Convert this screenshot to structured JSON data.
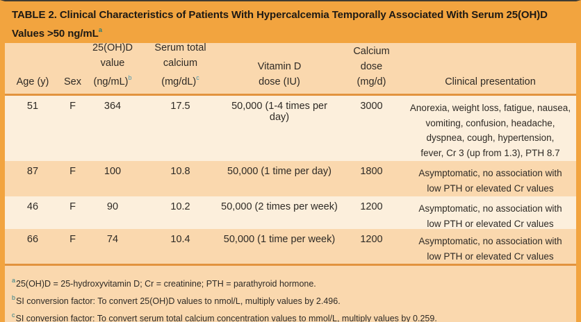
{
  "colors": {
    "title_band_orange": "#F2A43F",
    "band_medium_peach": "#FAD8AE",
    "band_light_cream": "#FCEFDC",
    "rule_orange": "#E2933E",
    "superscript_teal": "#2E7D86",
    "text_dark": "#2E2A25"
  },
  "table": {
    "title": {
      "line1": "TABLE 2. Clinical Characteristics of Patients With Hypercalcemia Temporally Associated With Serum 25(OH)D",
      "line2": "Values >50 ng/mL",
      "marker": "a"
    },
    "headers": {
      "age": {
        "l1": "Age (y)"
      },
      "sex": {
        "l1": "Sex"
      },
      "dvalue": {
        "l1": "25(OH)D",
        "l2": "value",
        "l3": "(ng/mL)",
        "marker": "b"
      },
      "serum": {
        "l1": "Serum total",
        "l2": "calcium",
        "l3": "(mg/dL)",
        "marker": "c"
      },
      "vitd": {
        "l1": "Vitamin D",
        "l2": "dose (IU)"
      },
      "cadose": {
        "l1": "Calcium",
        "l2": "dose",
        "l3": "(mg/d)"
      },
      "presentation": {
        "l1": "Clinical presentation"
      }
    },
    "rows": [
      {
        "age": "51",
        "sex": "F",
        "dvalue": "364",
        "serum": "17.5",
        "vitd": "50,000 (1-4 times per day)",
        "cadose": "3000",
        "pres1": "Anorexia, weight loss, fatigue, nausea,",
        "pres2": "vomiting, confusion, headache,",
        "pres3": "dyspnea, cough, hypertension,",
        "pres4": "fever, Cr 3 (up from 1.3), PTH 8.7"
      },
      {
        "age": "87",
        "sex": "F",
        "dvalue": "100",
        "serum": "10.8",
        "vitd": "50,000 (1 time per day)",
        "cadose": "1800",
        "pres1": "Asymptomatic, no association with",
        "pres2": "low PTH or elevated Cr values"
      },
      {
        "age": "46",
        "sex": "F",
        "dvalue": "90",
        "serum": "10.2",
        "vitd": "50,000 (2 times per week)",
        "cadose": "1200",
        "pres1": "Asymptomatic, no association with",
        "pres2": "low PTH or elevated Cr values"
      },
      {
        "age": "66",
        "sex": "F",
        "dvalue": "74",
        "serum": "10.4",
        "vitd": "50,000 (1 time per week)",
        "cadose": "1200",
        "pres1": "Asymptomatic, no association with",
        "pres2": "low PTH or elevated Cr values"
      }
    ],
    "footnotes": [
      {
        "marker": "a",
        "text": "25(OH)D = 25-hydroxyvitamin D; Cr = creatinine; PTH = parathyroid hormone."
      },
      {
        "marker": "b",
        "text": "SI conversion factor: To convert 25(OH)D values to nmol/L, multiply values by 2.496."
      },
      {
        "marker": "c",
        "text": "SI conversion factor: To convert serum total calcium concentration values to mmol/L, multiply values by 0.259."
      }
    ]
  }
}
